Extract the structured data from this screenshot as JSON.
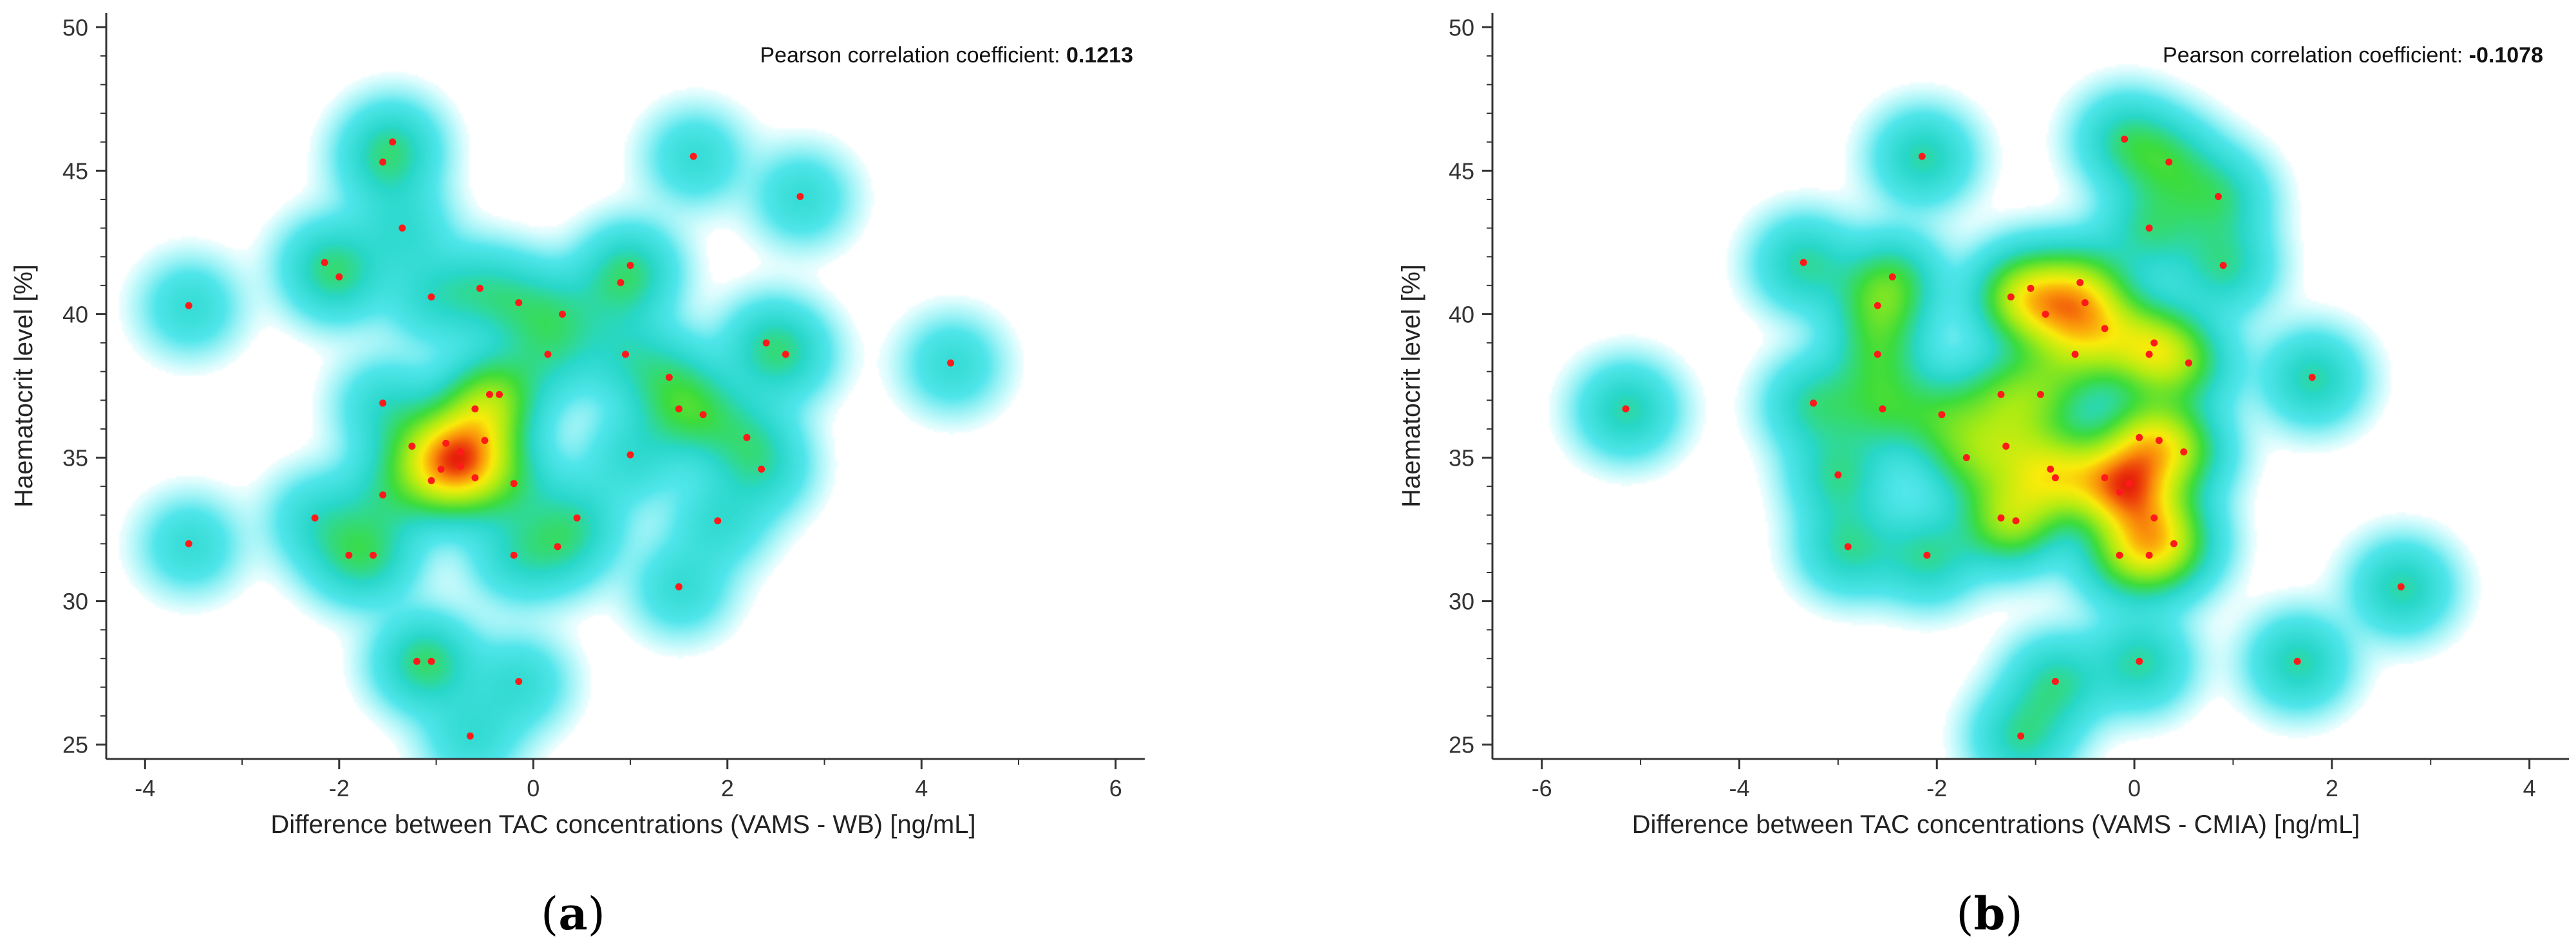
{
  "chart_data": [
    {
      "type": "scatter",
      "style": "density heatmap scatter",
      "panel_label": "(a)",
      "title": "",
      "xlabel": "Difference between TAC concentrations (VAMS - WB) [ng/mL]",
      "ylabel": "Haematocrit  level [%]",
      "xlim": [
        -4.4,
        6.3
      ],
      "ylim": [
        24.5,
        50.5
      ],
      "xticks": [
        -4,
        -2,
        0,
        2,
        4,
        6
      ],
      "yticks": [
        25,
        30,
        35,
        40,
        45,
        50
      ],
      "annotation": {
        "label": "Pearson correlation coefficient:",
        "value": "0.1213"
      },
      "points": [
        [
          -1.45,
          46.0
        ],
        [
          -1.55,
          45.3
        ],
        [
          -1.35,
          43.0
        ],
        [
          1.65,
          45.5
        ],
        [
          2.75,
          44.1
        ],
        [
          -3.55,
          40.3
        ],
        [
          -2.15,
          41.8
        ],
        [
          -2.0,
          41.3
        ],
        [
          -1.05,
          40.6
        ],
        [
          -0.55,
          40.9
        ],
        [
          -0.15,
          40.4
        ],
        [
          0.3,
          40.0
        ],
        [
          0.15,
          38.6
        ],
        [
          0.9,
          41.1
        ],
        [
          1.0,
          41.7
        ],
        [
          0.95,
          38.6
        ],
        [
          2.4,
          39.0
        ],
        [
          2.6,
          38.6
        ],
        [
          4.3,
          38.3
        ],
        [
          -1.55,
          36.9
        ],
        [
          -0.45,
          37.2
        ],
        [
          -0.35,
          37.2
        ],
        [
          -0.6,
          36.7
        ],
        [
          -1.25,
          35.4
        ],
        [
          -0.9,
          35.5
        ],
        [
          -0.5,
          35.6
        ],
        [
          -0.75,
          35.2
        ],
        [
          -0.95,
          34.6
        ],
        [
          -0.6,
          34.3
        ],
        [
          -1.05,
          34.2
        ],
        [
          -0.75,
          34.7
        ],
        [
          -0.2,
          34.1
        ],
        [
          1.4,
          37.8
        ],
        [
          1.5,
          36.7
        ],
        [
          1.75,
          36.5
        ],
        [
          1.0,
          35.1
        ],
        [
          2.2,
          35.7
        ],
        [
          2.35,
          34.6
        ],
        [
          -1.55,
          33.7
        ],
        [
          -2.25,
          32.9
        ],
        [
          -1.9,
          31.6
        ],
        [
          -1.65,
          31.6
        ],
        [
          -0.2,
          31.6
        ],
        [
          0.25,
          31.9
        ],
        [
          0.45,
          32.9
        ],
        [
          1.9,
          32.8
        ],
        [
          -3.55,
          32.0
        ],
        [
          1.5,
          30.5
        ],
        [
          -1.2,
          27.9
        ],
        [
          -1.05,
          27.9
        ],
        [
          -0.15,
          27.2
        ],
        [
          -0.65,
          25.3
        ]
      ]
    },
    {
      "type": "scatter",
      "style": "density heatmap scatter",
      "panel_label": "(b)",
      "title": "",
      "xlabel": "Difference between TAC concentrations (VAMS - CMIA) [ng/mL]",
      "ylabel": "Haematocrit level [%]",
      "xlim": [
        -6.5,
        4.4
      ],
      "ylim": [
        24.5,
        50.5
      ],
      "xticks": [
        -6,
        -4,
        -2,
        0,
        2,
        4
      ],
      "yticks": [
        25,
        30,
        35,
        40,
        45,
        50
      ],
      "annotation": {
        "label": "Pearson correlation coefficient:",
        "value": "-0.1078"
      },
      "points": [
        [
          -2.15,
          45.5
        ],
        [
          -0.1,
          46.1
        ],
        [
          0.35,
          45.3
        ],
        [
          0.85,
          44.1
        ],
        [
          0.15,
          43.0
        ],
        [
          -3.35,
          41.8
        ],
        [
          -2.45,
          41.3
        ],
        [
          -2.6,
          40.3
        ],
        [
          0.9,
          41.7
        ],
        [
          -1.05,
          40.9
        ],
        [
          -0.55,
          41.1
        ],
        [
          -1.25,
          40.6
        ],
        [
          -0.9,
          40.0
        ],
        [
          -0.5,
          40.4
        ],
        [
          -0.3,
          39.5
        ],
        [
          0.2,
          39.0
        ],
        [
          0.15,
          38.6
        ],
        [
          0.55,
          38.3
        ],
        [
          -0.6,
          38.6
        ],
        [
          -2.6,
          38.6
        ],
        [
          -5.15,
          36.7
        ],
        [
          -3.25,
          36.9
        ],
        [
          -2.55,
          36.7
        ],
        [
          -1.95,
          36.5
        ],
        [
          -1.35,
          37.2
        ],
        [
          -0.95,
          37.2
        ],
        [
          -1.7,
          35.0
        ],
        [
          -1.3,
          35.4
        ],
        [
          1.8,
          37.8
        ],
        [
          0.5,
          35.2
        ],
        [
          0.05,
          35.7
        ],
        [
          0.25,
          35.6
        ],
        [
          -0.85,
          34.6
        ],
        [
          -0.8,
          34.3
        ],
        [
          -0.3,
          34.3
        ],
        [
          -0.05,
          34.1
        ],
        [
          -0.15,
          33.8
        ],
        [
          0.2,
          32.9
        ],
        [
          0.4,
          32.0
        ],
        [
          -3.0,
          34.4
        ],
        [
          -1.35,
          32.9
        ],
        [
          -1.2,
          32.8
        ],
        [
          -2.9,
          31.9
        ],
        [
          -2.1,
          31.6
        ],
        [
          -0.15,
          31.6
        ],
        [
          0.15,
          31.6
        ],
        [
          2.7,
          30.5
        ],
        [
          -0.8,
          27.2
        ],
        [
          0.05,
          27.9
        ],
        [
          1.65,
          27.9
        ],
        [
          -1.15,
          25.3
        ]
      ]
    }
  ]
}
